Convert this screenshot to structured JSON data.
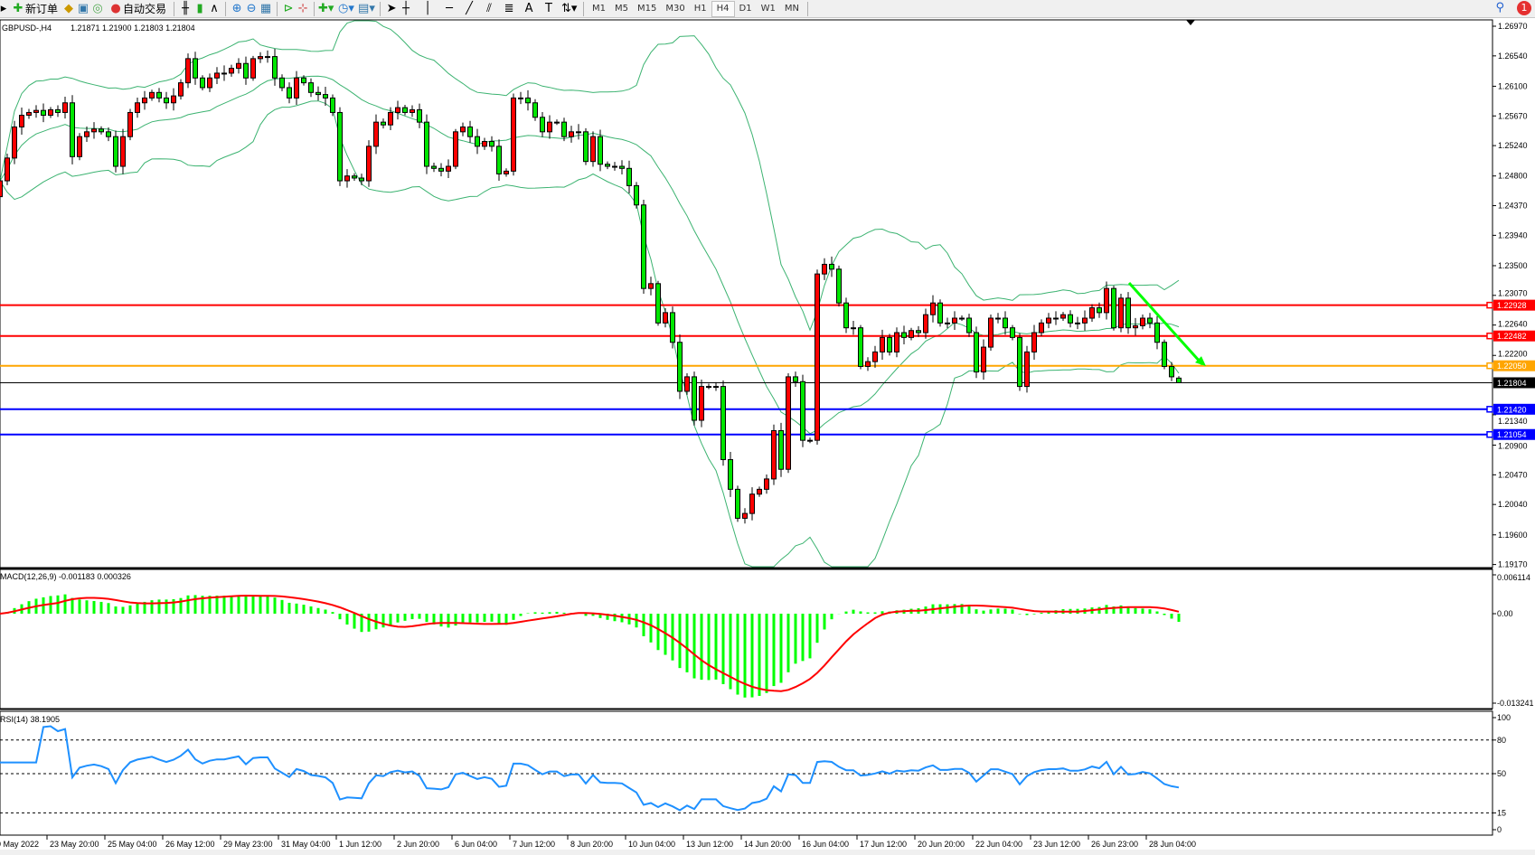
{
  "toolbar": {
    "new_order": "新订单",
    "auto_trade": "自动交易",
    "timeframes": [
      "M1",
      "M5",
      "M15",
      "M30",
      "H1",
      "H4",
      "D1",
      "W1",
      "MN"
    ],
    "active_timeframe": "H4",
    "notification_count": "1",
    "icons": [
      "new-order-icon",
      "navigator-icon",
      "terminal-icon",
      "signals-icon",
      "auto-trading-icon",
      "bar-chart-icon",
      "candlestick-icon",
      "line-chart-icon",
      "zoom-in-icon",
      "zoom-out-icon",
      "tile-windows-icon",
      "chart-shift-icon",
      "autoscroll-icon",
      "indicators-icon",
      "periods-clock-icon",
      "templates-icon",
      "cursor-icon",
      "crosshair-icon",
      "vertical-line-icon",
      "horizontal-line-icon",
      "trendline-icon",
      "equidistant-channel-icon",
      "fibonacci-icon",
      "text-icon",
      "text-label-icon",
      "arrows-icon"
    ]
  },
  "chart": {
    "symbol": "GBPUSD-,H4",
    "ohlc_text": "1.21871 1.21900 1.21803 1.21804",
    "macd_label": "MACD(12,26,9) -0.001183 0.000326",
    "rsi_label": "RSI(14) 38.1905"
  },
  "chart_data": {
    "type": "candlestick",
    "symbol": "GBPUSD",
    "timeframe": "H4",
    "bullish_color": "#ff0000",
    "bearish_color": "#00e600",
    "bands_color": "#3cb371",
    "last_bar": {
      "open": 1.21871,
      "high": 1.219,
      "low": 1.21803,
      "close": 1.21804
    },
    "closes": [
      1.2473,
      1.2506,
      1.2551,
      1.2568,
      1.2572,
      1.2575,
      1.2568,
      1.2576,
      1.2572,
      1.2586,
      1.2508,
      1.2537,
      1.2544,
      1.2548,
      1.2544,
      1.2537,
      1.2494,
      1.2537,
      1.2572,
      1.2586,
      1.2593,
      1.2601,
      1.2593,
      1.2586,
      1.2596,
      1.2615,
      1.265,
      1.2622,
      1.2608,
      1.2622,
      1.2629,
      1.2629,
      1.2636,
      1.2643,
      1.2622,
      1.265,
      1.2653,
      1.2653,
      1.2622,
      1.2608,
      1.2593,
      1.2622,
      1.2615,
      1.2601,
      1.2598,
      1.2593,
      1.2572,
      1.2473,
      1.248,
      1.2477,
      1.2473,
      1.2523,
      1.2558,
      1.2554,
      1.2572,
      1.2579,
      1.2572,
      1.2576,
      1.2558,
      1.2494,
      1.2491,
      1.2487,
      1.2494,
      1.2544,
      1.2551,
      1.2537,
      1.2523,
      1.253,
      1.2523,
      1.2483,
      1.2487,
      1.2593,
      1.2593,
      1.2586,
      1.2565,
      1.2544,
      1.2558,
      1.2558,
      1.2537,
      1.2544,
      1.2544,
      1.2501,
      1.2537,
      1.2497,
      1.2494,
      1.2494,
      1.2491,
      1.2466,
      1.2438,
      1.2317,
      1.2324,
      1.2267,
      1.2282,
      1.2239,
      1.2168,
      1.2189,
      1.2126,
      1.2175,
      1.2175,
      1.2175,
      1.2069,
      1.2026,
      1.1984,
      1.1991,
      1.2019,
      1.2026,
      1.2041,
      1.2111,
      1.2055,
      1.2189,
      1.2182,
      1.2097,
      1.2097,
      1.2338,
      1.2352,
      1.2345,
      1.2296,
      1.226,
      1.226,
      1.2204,
      1.2211,
      1.2225,
      1.2246,
      1.2225,
      1.2253,
      1.2246,
      1.2256,
      1.2253,
      1.2279,
      1.2296,
      1.2267,
      1.2267,
      1.2274,
      1.2274,
      1.2253,
      1.2196,
      1.2232,
      1.2274,
      1.2274,
      1.226,
      1.2246,
      1.2175,
      1.2225,
      1.2253,
      1.2267,
      1.2274,
      1.2274,
      1.2279,
      1.2267,
      1.2267,
      1.2274,
      1.2289,
      1.2282,
      1.2317,
      1.226,
      1.2303,
      1.226,
      1.2263,
      1.2274,
      1.2267,
      1.2239,
      1.2204,
      1.2189,
      1.21804
    ],
    "price_axis": {
      "range": [
        1.1917,
        1.2697
      ],
      "ticks": [
        "1.26970",
        "1.26540",
        "1.26100",
        "1.25670",
        "1.25240",
        "1.24800",
        "1.24370",
        "1.23940",
        "1.23500",
        "1.23070",
        "1.22640",
        "1.22200",
        "1.21340",
        "1.20900",
        "1.20470",
        "1.20040",
        "1.19600",
        "1.19170"
      ]
    },
    "levels": [
      {
        "price": "1.22928",
        "color": "#ff0000"
      },
      {
        "price": "1.22482",
        "color": "#ff0000"
      },
      {
        "price": "1.22050",
        "color": "#ffa500"
      },
      {
        "price": "1.21804",
        "color": "#000000"
      },
      {
        "price": "1.21420",
        "color": "#0000ff"
      },
      {
        "price": "1.21054",
        "color": "#0000ff"
      }
    ],
    "trend_arrow": {
      "color": "#00ff00",
      "from_price": 1.2325,
      "to_price": 1.2207
    },
    "macd": {
      "fast": 12,
      "slow": 26,
      "signal": 9,
      "axis_max": "0.006114",
      "axis_zero": "0.00",
      "axis_min": "-0.013241",
      "hist_color": "#00ff00",
      "signal_color": "#ff0000"
    },
    "rsi": {
      "period": 14,
      "levels": [
        "100",
        "80",
        "50",
        "15",
        "0"
      ],
      "color": "#1e90ff"
    },
    "time_labels": [
      "20 May 2022",
      "23 May 20:00",
      "25 May 04:00",
      "26 May 12:00",
      "29 May 23:00",
      "31 May 04:00",
      "1 Jun 12:00",
      "2 Jun 20:00",
      "6 Jun 04:00",
      "7 Jun 12:00",
      "8 Jun 20:00",
      "10 Jun 04:00",
      "13 Jun 12:00",
      "14 Jun 20:00",
      "16 Jun 04:00",
      "17 Jun 12:00",
      "20 Jun 20:00",
      "22 Jun 04:00",
      "23 Jun 12:00",
      "26 Jun 23:00",
      "28 Jun 04:00"
    ]
  }
}
